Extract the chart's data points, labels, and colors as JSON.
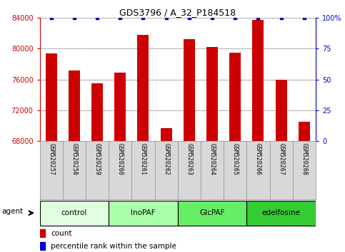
{
  "title": "GDS3796 / A_32_P184518",
  "samples": [
    "GSM520257",
    "GSM520258",
    "GSM520259",
    "GSM520260",
    "GSM520261",
    "GSM520262",
    "GSM520263",
    "GSM520264",
    "GSM520265",
    "GSM520266",
    "GSM520267",
    "GSM520268"
  ],
  "counts": [
    79400,
    77200,
    75500,
    76900,
    81800,
    69700,
    81200,
    80200,
    79500,
    83700,
    76000,
    70500
  ],
  "percentiles": [
    100,
    100,
    100,
    100,
    100,
    100,
    100,
    100,
    100,
    100,
    100,
    100
  ],
  "ylim_left": [
    68000,
    84000
  ],
  "ylim_right": [
    0,
    100
  ],
  "yticks_left": [
    68000,
    72000,
    76000,
    80000,
    84000
  ],
  "yticks_right": [
    0,
    25,
    50,
    75,
    100
  ],
  "yticklabels_right": [
    "0",
    "25",
    "50",
    "75",
    "100%"
  ],
  "bar_color": "#cc0000",
  "scatter_color": "#0000cc",
  "groups": [
    {
      "label": "control",
      "start": 0,
      "end": 3,
      "color": "#e0ffe0"
    },
    {
      "label": "InoPAF",
      "start": 3,
      "end": 6,
      "color": "#aaffaa"
    },
    {
      "label": "GlcPAF",
      "start": 6,
      "end": 9,
      "color": "#66ee66"
    },
    {
      "label": "edelfosine",
      "start": 9,
      "end": 12,
      "color": "#33cc33"
    }
  ],
  "agent_label": "agent",
  "bar_width": 0.5,
  "cell_color": "#d8d8d8",
  "cell_border_color": "#888888",
  "title_fontsize": 9,
  "axis_fontsize": 7,
  "label_fontsize": 6,
  "group_fontsize": 7.5
}
